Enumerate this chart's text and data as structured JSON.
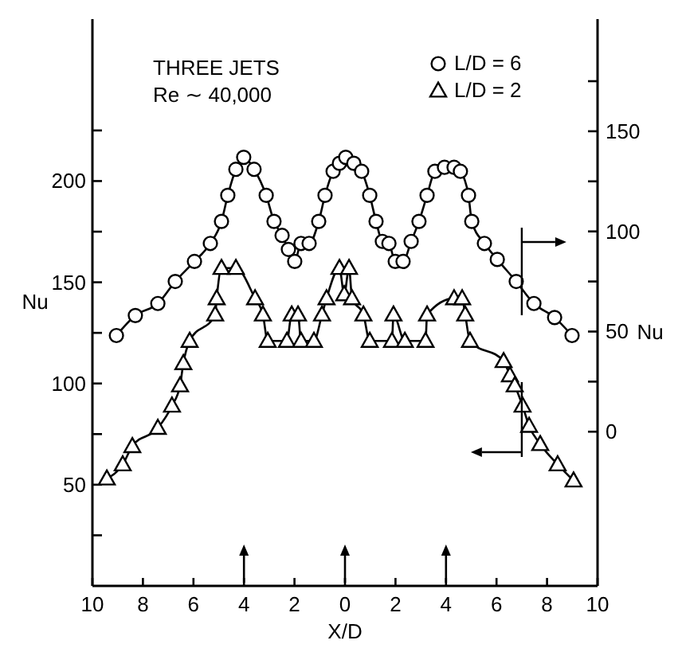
{
  "chart_data": {
    "type": "line",
    "xlabel": "X/D",
    "ylabel": "Nu",
    "y2label": "Nu",
    "annotations": [
      "THREE JETS",
      "Re ∼ 40,000"
    ],
    "xlim": [
      -10,
      10
    ],
    "xticks": [
      {
        "value": -10,
        "label": "10"
      },
      {
        "value": -8,
        "label": "8"
      },
      {
        "value": -6,
        "label": "6"
      },
      {
        "value": -4,
        "label": "4"
      },
      {
        "value": -2,
        "label": "2"
      },
      0,
      2,
      4,
      6,
      8,
      10
    ],
    "ylim": [
      0,
      280
    ],
    "yticks": [
      {
        "value": 25,
        "label": null
      },
      50,
      {
        "value": 75,
        "label": null
      },
      100,
      {
        "value": 125,
        "label": null
      },
      150,
      {
        "value": 175,
        "label": null
      },
      200,
      {
        "value": 225,
        "label": null
      }
    ],
    "y2lim": [
      -77,
      206
    ],
    "y2ticks": [
      0,
      {
        "value": 25,
        "label": null
      },
      50,
      {
        "value": 75,
        "label": null
      },
      100,
      {
        "value": 125,
        "label": null
      },
      150,
      {
        "value": 175,
        "label": null
      }
    ],
    "legend": "top right",
    "grid": false,
    "line_style": "solid",
    "series": [
      {
        "name": "L/D = 6",
        "color": "#000000",
        "marker": "circle",
        "axis": "y2",
        "x": [
          -9.05,
          -8.3,
          -7.41,
          -6.72,
          -5.96,
          -5.33,
          -4.89,
          -4.64,
          -4.32,
          -4.01,
          -3.6,
          -3.12,
          -2.81,
          -2.49,
          -2.24,
          -1.99,
          -1.74,
          -1.42,
          -1.04,
          -0.79,
          -0.47,
          -0.22,
          0.03,
          0.35,
          0.66,
          0.98,
          1.23,
          1.48,
          1.74,
          1.99,
          2.3,
          2.62,
          2.93,
          3.25,
          3.56,
          3.94,
          4.32,
          4.57,
          4.89,
          5.02,
          5.52,
          6.03,
          6.78,
          7.48,
          8.3,
          8.99
        ],
        "values": [
          48,
          58,
          64,
          75,
          85,
          94,
          105,
          118,
          131,
          137,
          131,
          118,
          105,
          98,
          91,
          85,
          94,
          94,
          105,
          118,
          130,
          134,
          137,
          134,
          130,
          118,
          105,
          95,
          94,
          85,
          85,
          95,
          105,
          118,
          130,
          132,
          132,
          130,
          118,
          105,
          94,
          86,
          75,
          64,
          57,
          48
        ]
      },
      {
        "name": "L/D = 2",
        "color": "#000000",
        "marker": "triangle",
        "axis": "y",
        "x": [
          -9.43,
          -8.8,
          -8.42,
          -7.41,
          -6.85,
          -6.53,
          -6.4,
          -6.15,
          -5.14,
          -5.08,
          -4.89,
          -4.32,
          -3.56,
          -3.25,
          -3.06,
          -2.3,
          -2.11,
          -1.86,
          -1.74,
          -1.23,
          -0.91,
          -0.73,
          -0.22,
          -0.03,
          0.16,
          0.28,
          0.73,
          0.98,
          1.86,
          1.92,
          2.37,
          3.19,
          3.25,
          4.32,
          4.64,
          4.76,
          4.95,
          6.28,
          6.53,
          6.72,
          7.03,
          7.29,
          7.73,
          8.42,
          9.05
        ],
        "values": [
          53,
          60,
          69,
          78,
          89,
          99,
          110,
          121,
          134,
          142,
          157,
          157,
          142,
          134,
          121,
          121,
          134,
          134,
          121,
          121,
          134,
          142,
          157,
          144,
          157,
          142,
          134,
          121,
          121,
          134,
          121,
          121,
          134,
          142,
          142,
          134,
          121,
          111,
          104,
          99,
          89,
          79,
          70,
          60,
          52
        ]
      }
    ]
  }
}
